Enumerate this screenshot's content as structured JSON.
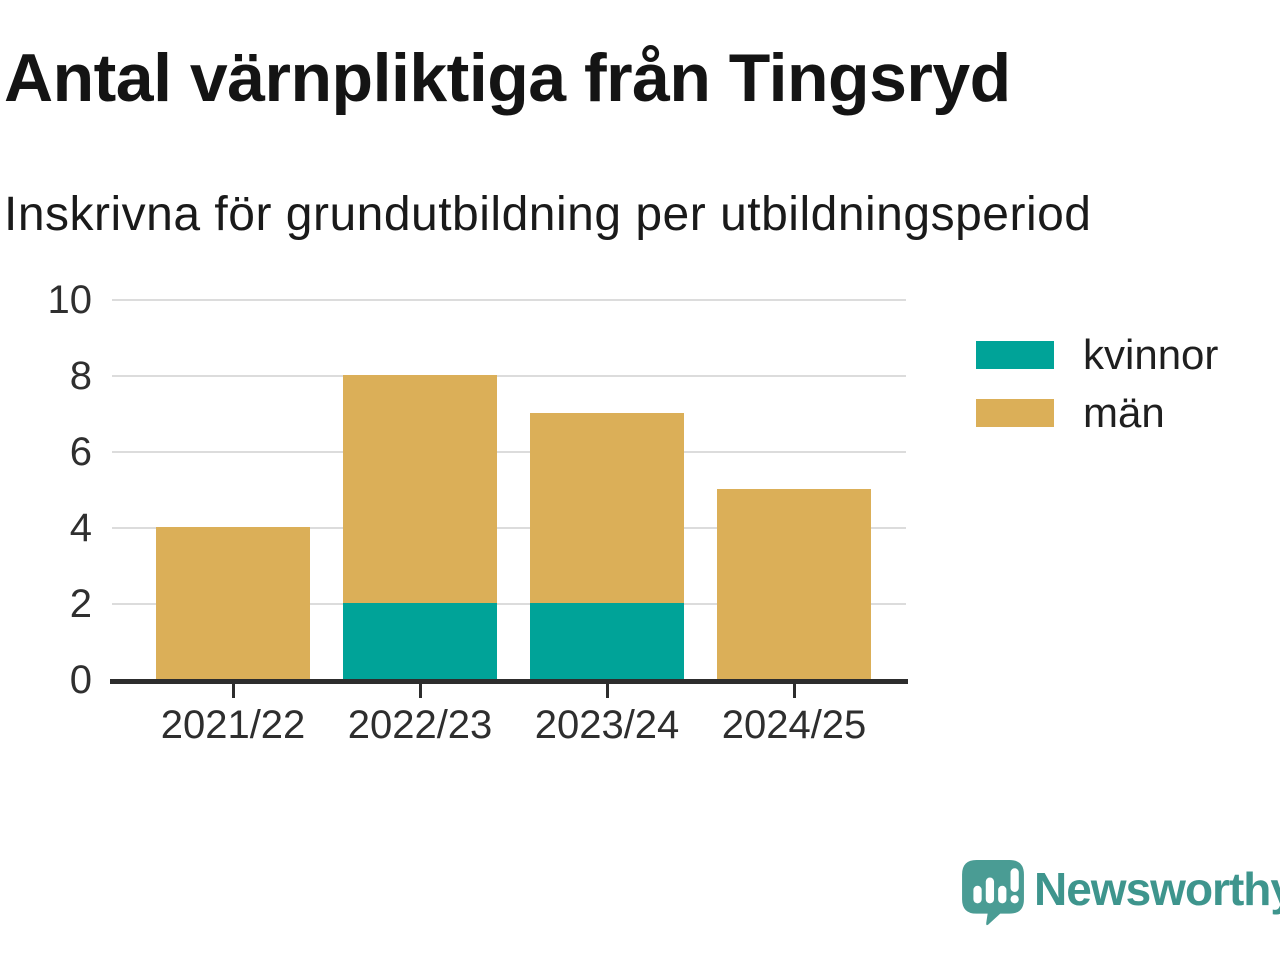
{
  "header": {
    "title": "Antal värnpliktiga från Tingsryd",
    "subtitle": "Inskrivna för grundutbildning per utbildningsperiod"
  },
  "chart_data": {
    "type": "bar",
    "stacked": true,
    "title": "Antal värnpliktiga från Tingsryd",
    "subtitle": "Inskrivna för grundutbildning per utbildningsperiod",
    "categories": [
      "2021/22",
      "2022/23",
      "2023/24",
      "2024/25"
    ],
    "series": [
      {
        "name": "kvinnor",
        "color": "#00A398",
        "values": [
          0,
          2,
          2,
          0
        ]
      },
      {
        "name": "män",
        "color": "#DBAF58",
        "values": [
          4,
          6,
          5,
          5
        ]
      }
    ],
    "totals": [
      4,
      8,
      7,
      5
    ],
    "xlabel": "",
    "ylabel": "",
    "ylim": [
      0,
      10
    ],
    "yticks": [
      0,
      2,
      4,
      6,
      8,
      10
    ],
    "grid": "horizontal",
    "legend_position": "right"
  },
  "legend": {
    "items": [
      {
        "label": "kvinnor",
        "color": "#00A398"
      },
      {
        "label": "män",
        "color": "#DBAF58"
      }
    ]
  },
  "branding": {
    "name": "Newsworthy",
    "logo_icon": "bar-chart-speech-bubble",
    "text_color": "#3E958D",
    "icon_color": "#4A9C94"
  },
  "colors": {
    "bar_teal": "#00A398",
    "bar_gold": "#DBAF58",
    "gridline": "#DCDCDC",
    "axis": "#2D2D2D",
    "title_text": "#141414"
  }
}
